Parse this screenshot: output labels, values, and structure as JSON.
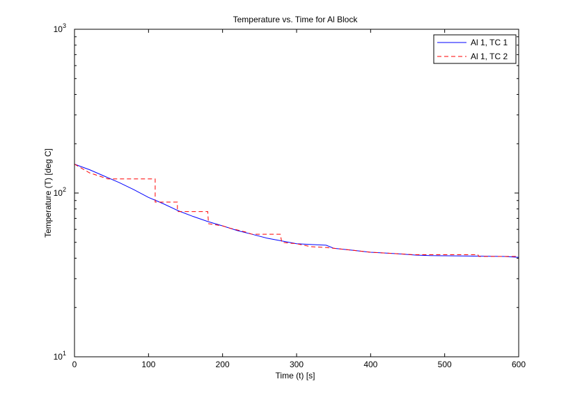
{
  "chart_data": {
    "type": "line",
    "title": "Temperature vs. Time for Al Block",
    "xlabel": "Time (t) [s]",
    "ylabel": "Temperature (T) [deg C]",
    "xlim": [
      0,
      600
    ],
    "ylim": [
      10,
      1000
    ],
    "yscale": "log",
    "grid": false,
    "legend_position": "top-right",
    "x_ticks": [
      0,
      100,
      200,
      300,
      400,
      500,
      600
    ],
    "y_ticks": [
      {
        "value": 10,
        "base": "10",
        "exp": "1"
      },
      {
        "value": 100,
        "base": "10",
        "exp": "2"
      },
      {
        "value": 1000,
        "base": "10",
        "exp": "3"
      }
    ],
    "series": [
      {
        "name": "Al 1, TC 1",
        "color": "#0000ff",
        "dash": "solid",
        "x": [
          0,
          20,
          40,
          60,
          80,
          100,
          110,
          120,
          140,
          160,
          180,
          200,
          220,
          240,
          260,
          280,
          300,
          320,
          340,
          350,
          360,
          380,
          400,
          420,
          440,
          460,
          480,
          500,
          520,
          540,
          560,
          580,
          600
        ],
        "y": [
          150,
          139,
          127,
          116,
          105,
          94,
          90,
          86,
          78,
          72,
          67,
          63,
          59,
          56,
          53,
          51,
          49,
          48.5,
          48,
          46,
          45.5,
          44.5,
          43.5,
          43,
          42.5,
          41.8,
          41.5,
          41.4,
          41.3,
          41.2,
          41.1,
          41.0,
          40.5
        ]
      },
      {
        "name": "Al 1, TC 2",
        "color": "#ff0000",
        "dash": "dashed",
        "x": [
          0,
          20,
          45,
          60,
          109,
          109,
          110,
          139,
          139,
          180,
          181,
          200,
          210,
          230,
          240,
          278,
          280,
          300,
          320,
          340,
          360,
          380,
          400,
          420,
          440,
          460,
          480,
          500,
          545,
          546,
          600
        ],
        "y": [
          150,
          133,
          122,
          122,
          122,
          88,
          88,
          88,
          77,
          77,
          65,
          63,
          61,
          58,
          56,
          56,
          50,
          49,
          47,
          46.5,
          45.5,
          44.5,
          43.5,
          43,
          42.5,
          42,
          42,
          42,
          42,
          41,
          41
        ]
      }
    ]
  }
}
